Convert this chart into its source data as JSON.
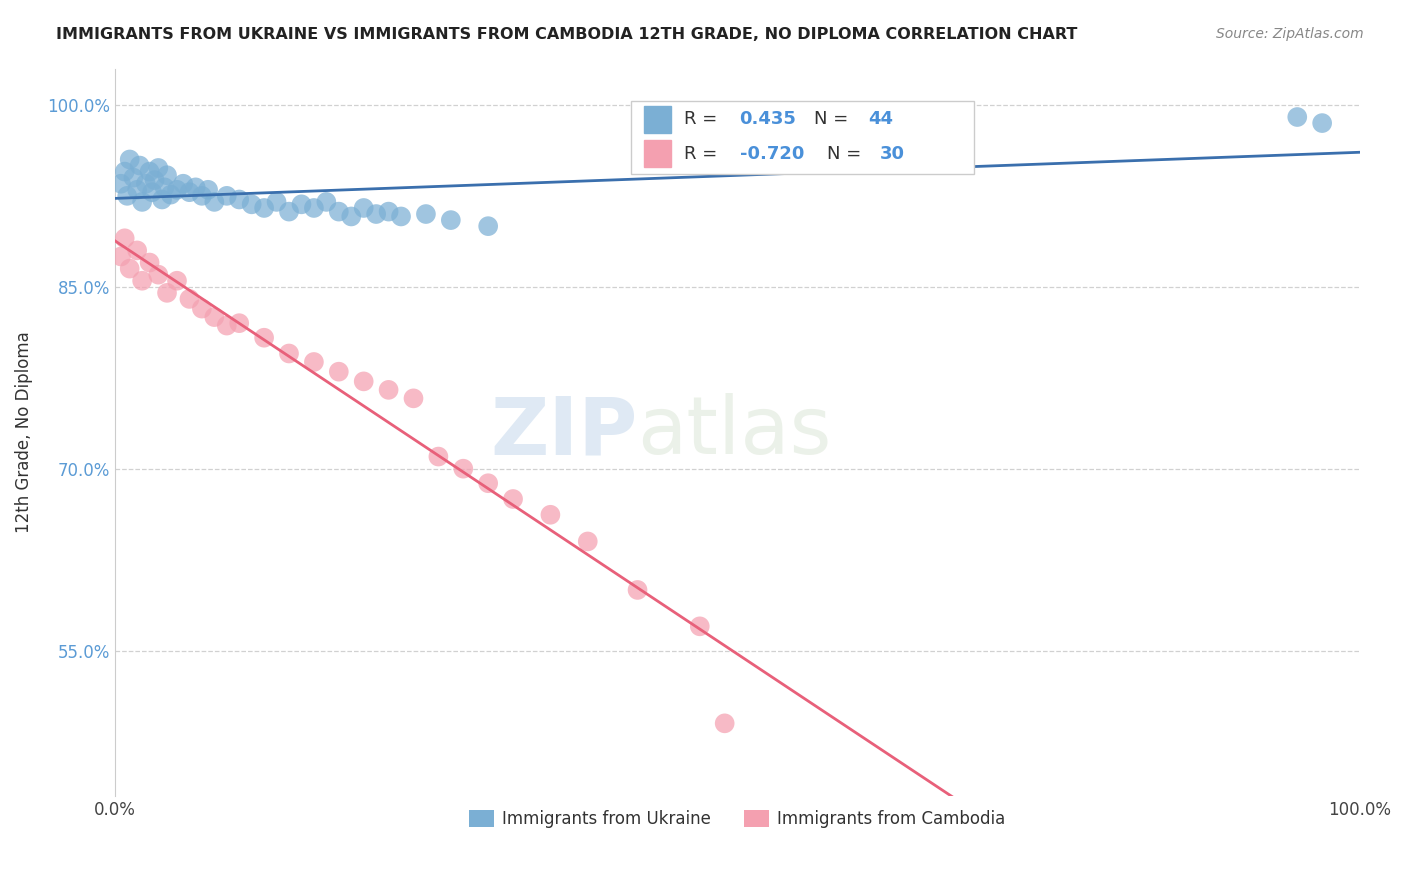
{
  "title": "IMMIGRANTS FROM UKRAINE VS IMMIGRANTS FROM CAMBODIA 12TH GRADE, NO DIPLOMA CORRELATION CHART",
  "source": "Source: ZipAtlas.com",
  "ylabel": "12th Grade, No Diploma",
  "watermark_zip": "ZIP",
  "watermark_atlas": "atlas",
  "ukraine_R": 0.435,
  "ukraine_N": 44,
  "cambodia_R": -0.72,
  "cambodia_N": 30,
  "ukraine_color": "#7bafd4",
  "cambodia_color": "#f4a0b0",
  "ukraine_line_color": "#3a6fad",
  "cambodia_line_color": "#e8607a",
  "R_value_color": "#4a90d9",
  "N_value_color": "#4a90d9",
  "xlim": [
    0.0,
    1.0
  ],
  "ylim": [
    0.43,
    1.03
  ],
  "x_ticks": [
    0.0,
    1.0
  ],
  "x_tick_labels": [
    "0.0%",
    "100.0%"
  ],
  "y_ticks": [
    0.55,
    0.7,
    0.85,
    1.0
  ],
  "y_tick_labels": [
    "55.0%",
    "70.0%",
    "85.0%",
    "100.0%"
  ],
  "ukraine_x": [
    0.005,
    0.008,
    0.01,
    0.012,
    0.015,
    0.018,
    0.02,
    0.022,
    0.025,
    0.028,
    0.03,
    0.032,
    0.035,
    0.038,
    0.04,
    0.042,
    0.045,
    0.05,
    0.055,
    0.06,
    0.065,
    0.07,
    0.075,
    0.08,
    0.09,
    0.1,
    0.11,
    0.12,
    0.13,
    0.14,
    0.15,
    0.16,
    0.17,
    0.18,
    0.19,
    0.2,
    0.21,
    0.22,
    0.23,
    0.25,
    0.27,
    0.3,
    0.95,
    0.97
  ],
  "ukraine_y": [
    0.935,
    0.945,
    0.925,
    0.955,
    0.94,
    0.93,
    0.95,
    0.92,
    0.935,
    0.945,
    0.928,
    0.938,
    0.948,
    0.922,
    0.932,
    0.942,
    0.926,
    0.93,
    0.935,
    0.928,
    0.932,
    0.925,
    0.93,
    0.92,
    0.925,
    0.922,
    0.918,
    0.915,
    0.92,
    0.912,
    0.918,
    0.915,
    0.92,
    0.912,
    0.908,
    0.915,
    0.91,
    0.912,
    0.908,
    0.91,
    0.905,
    0.9,
    0.99,
    0.985
  ],
  "cambodia_x": [
    0.005,
    0.008,
    0.012,
    0.018,
    0.022,
    0.028,
    0.035,
    0.042,
    0.05,
    0.06,
    0.07,
    0.08,
    0.09,
    0.1,
    0.12,
    0.14,
    0.16,
    0.18,
    0.2,
    0.22,
    0.24,
    0.26,
    0.28,
    0.3,
    0.32,
    0.35,
    0.38,
    0.42,
    0.47,
    0.49
  ],
  "cambodia_y": [
    0.875,
    0.89,
    0.865,
    0.88,
    0.855,
    0.87,
    0.86,
    0.845,
    0.855,
    0.84,
    0.832,
    0.825,
    0.818,
    0.82,
    0.808,
    0.795,
    0.788,
    0.78,
    0.772,
    0.765,
    0.758,
    0.71,
    0.7,
    0.688,
    0.675,
    0.662,
    0.64,
    0.6,
    0.57,
    0.49
  ]
}
